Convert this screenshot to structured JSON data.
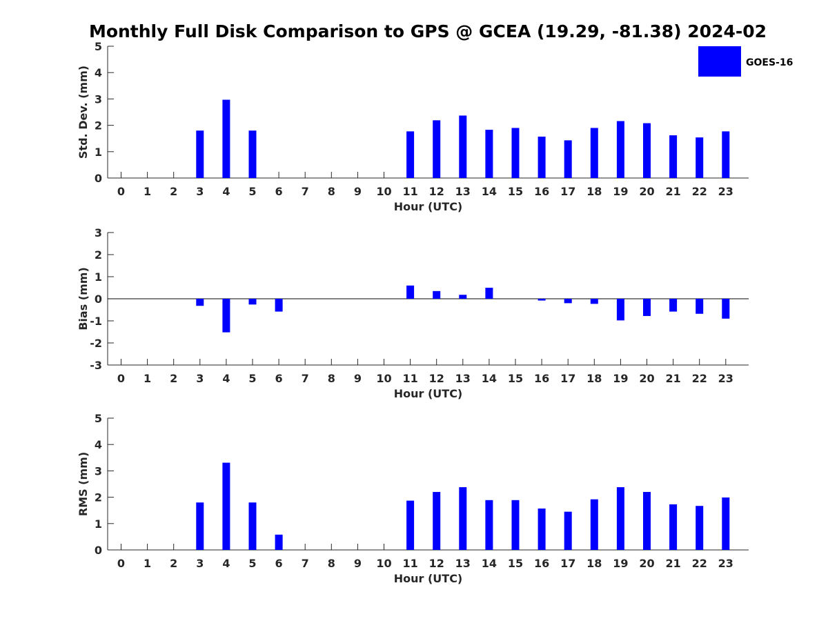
{
  "chart_data": {
    "type": "bar",
    "title": "Monthly Full Disk Comparison to GPS @ GCEA (19.29, -81.38) 2024-02",
    "legend": {
      "position": "top-right",
      "entries": [
        {
          "label": "GOES-16",
          "color": "#0000ff"
        }
      ]
    },
    "bar_color": "#0000ff",
    "grid": false,
    "categories": [
      "0",
      "1",
      "2",
      "3",
      "4",
      "5",
      "6",
      "7",
      "8",
      "9",
      "10",
      "11",
      "12",
      "13",
      "14",
      "15",
      "16",
      "17",
      "18",
      "19",
      "20",
      "21",
      "22",
      "23"
    ],
    "panels": [
      {
        "ylabel": "Std. Dev. (mm)",
        "xlabel": "Hour (UTC)",
        "ylim": [
          0,
          5
        ],
        "yticks": [
          "0",
          "1",
          "2",
          "3",
          "4",
          "5"
        ],
        "values": [
          null,
          null,
          null,
          1.8,
          2.97,
          1.8,
          null,
          null,
          null,
          null,
          null,
          1.77,
          2.19,
          2.37,
          1.83,
          1.9,
          1.57,
          1.43,
          1.9,
          2.16,
          2.08,
          1.62,
          1.54,
          1.77
        ]
      },
      {
        "ylabel": "Bias (mm)",
        "xlabel": "Hour (UTC)",
        "ylim": [
          -3,
          3
        ],
        "yticks": [
          "-3",
          "-2",
          "-1",
          "0",
          "1",
          "2",
          "3"
        ],
        "zero_line": true,
        "values": [
          null,
          null,
          null,
          -0.32,
          -1.52,
          -0.26,
          -0.58,
          null,
          null,
          null,
          null,
          0.6,
          0.35,
          0.18,
          0.5,
          null,
          -0.08,
          -0.2,
          -0.23,
          -0.98,
          -0.78,
          -0.58,
          -0.68,
          -0.9
        ]
      },
      {
        "ylabel": "RMS (mm)",
        "xlabel": "Hour (UTC)",
        "ylim": [
          0,
          5
        ],
        "yticks": [
          "0",
          "1",
          "2",
          "3",
          "4",
          "5"
        ],
        "values": [
          null,
          null,
          null,
          1.8,
          3.31,
          1.8,
          0.58,
          null,
          null,
          null,
          null,
          1.87,
          2.2,
          2.38,
          1.89,
          1.89,
          1.57,
          1.45,
          1.92,
          2.38,
          2.2,
          1.73,
          1.67,
          1.99
        ]
      }
    ]
  }
}
